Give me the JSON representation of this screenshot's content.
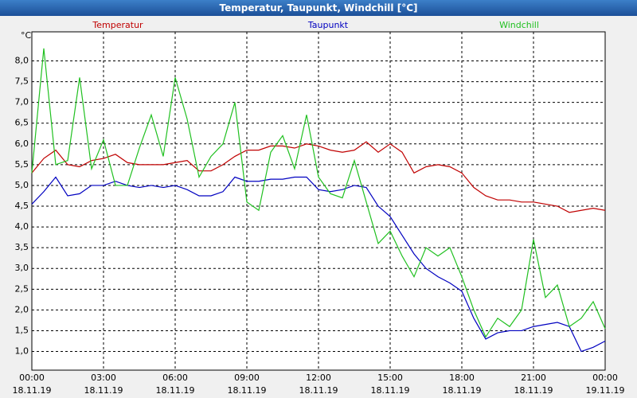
{
  "chart_data": {
    "type": "line",
    "title": "Temperatur, Taupunkt, Windchill [°C]",
    "y_unit": "°C",
    "x": [
      0,
      0.5,
      1,
      1.5,
      2,
      2.5,
      3,
      3.5,
      4,
      4.5,
      5,
      5.5,
      6,
      6.5,
      7,
      7.5,
      8,
      8.5,
      9,
      9.5,
      10,
      10.5,
      11,
      11.5,
      12,
      12.5,
      13,
      13.5,
      14,
      14.5,
      15,
      15.5,
      16,
      16.5,
      17,
      17.5,
      18,
      18.5,
      19,
      19.5,
      20,
      20.5,
      21,
      21.5,
      22,
      22.5,
      23,
      23.5,
      24
    ],
    "series": [
      {
        "name": "Temperatur",
        "color": "#c00000",
        "values": [
          5.3,
          5.65,
          5.85,
          5.5,
          5.45,
          5.6,
          5.65,
          5.75,
          5.55,
          5.5,
          5.5,
          5.5,
          5.55,
          5.6,
          5.35,
          5.35,
          5.5,
          5.7,
          5.85,
          5.85,
          5.95,
          5.95,
          5.9,
          6.0,
          5.95,
          5.85,
          5.8,
          5.85,
          6.05,
          5.8,
          6.0,
          5.8,
          5.3,
          5.45,
          5.5,
          5.45,
          5.3,
          4.95,
          4.75,
          4.65,
          4.65,
          4.6,
          4.6,
          4.55,
          4.5,
          4.35,
          4.4,
          4.45,
          4.4
        ]
      },
      {
        "name": "Taupunkt",
        "color": "#0000c0",
        "values": [
          4.55,
          4.85,
          5.2,
          4.75,
          4.8,
          5.0,
          5.0,
          5.1,
          5.0,
          4.95,
          5.0,
          4.95,
          5.0,
          4.9,
          4.75,
          4.75,
          4.85,
          5.2,
          5.1,
          5.1,
          5.15,
          5.15,
          5.2,
          5.2,
          4.9,
          4.85,
          4.9,
          5.0,
          4.95,
          4.5,
          4.25,
          3.8,
          3.35,
          3.0,
          2.8,
          2.65,
          2.45,
          1.8,
          1.3,
          1.45,
          1.5,
          1.5,
          1.6,
          1.65,
          1.7,
          1.6,
          1.0,
          1.1,
          1.25
        ]
      },
      {
        "name": "Windchill",
        "color": "#20c020",
        "values": [
          5.3,
          8.3,
          5.5,
          5.6,
          7.6,
          5.4,
          6.1,
          5.0,
          5.0,
          5.9,
          6.7,
          5.7,
          7.6,
          6.6,
          5.2,
          5.7,
          6.0,
          7.0,
          4.6,
          4.4,
          5.8,
          6.2,
          5.4,
          6.7,
          5.2,
          4.8,
          4.7,
          5.6,
          4.6,
          3.6,
          3.9,
          3.3,
          2.8,
          3.5,
          3.3,
          3.5,
          2.8,
          2.0,
          1.35,
          1.8,
          1.6,
          2.0,
          3.7,
          2.3,
          2.6,
          1.6,
          1.8,
          2.2,
          1.55
        ]
      }
    ],
    "xlim": [
      0,
      24
    ],
    "xticks": [
      {
        "value": 0,
        "label": "00:00"
      },
      {
        "value": 3,
        "label": "03:00"
      },
      {
        "value": 6,
        "label": "06:00"
      },
      {
        "value": 9,
        "label": "09:00"
      },
      {
        "value": 12,
        "label": "12:00"
      },
      {
        "value": 15,
        "label": "15:00"
      },
      {
        "value": 18,
        "label": "18:00"
      },
      {
        "value": 21,
        "label": "21:00"
      },
      {
        "value": 24,
        "label": "00:00"
      }
    ],
    "xtick_dates": [
      "18.11.19",
      "18.11.19",
      "18.11.19",
      "18.11.19",
      "18.11.19",
      "18.11.19",
      "18.11.19",
      "18.11.19",
      "19.11.19"
    ],
    "ylim": [
      0.55,
      8.7
    ],
    "yticks": [
      {
        "value": 1,
        "label": "1,0"
      },
      {
        "value": 1.5,
        "label": "1,5"
      },
      {
        "value": 2,
        "label": "2,0"
      },
      {
        "value": 2.5,
        "label": "2,5"
      },
      {
        "value": 3,
        "label": "3,0"
      },
      {
        "value": 3.5,
        "label": "3,5"
      },
      {
        "value": 4,
        "label": "4,0"
      },
      {
        "value": 4.5,
        "label": "4,5"
      },
      {
        "value": 5,
        "label": "5,0"
      },
      {
        "value": 5.5,
        "label": "5,5"
      },
      {
        "value": 6,
        "label": "6,0"
      },
      {
        "value": 6.5,
        "label": "6,5"
      },
      {
        "value": 7,
        "label": "7,0"
      },
      {
        "value": 7.5,
        "label": "7,5"
      },
      {
        "value": 8,
        "label": "8,0"
      }
    ],
    "grid": true
  }
}
